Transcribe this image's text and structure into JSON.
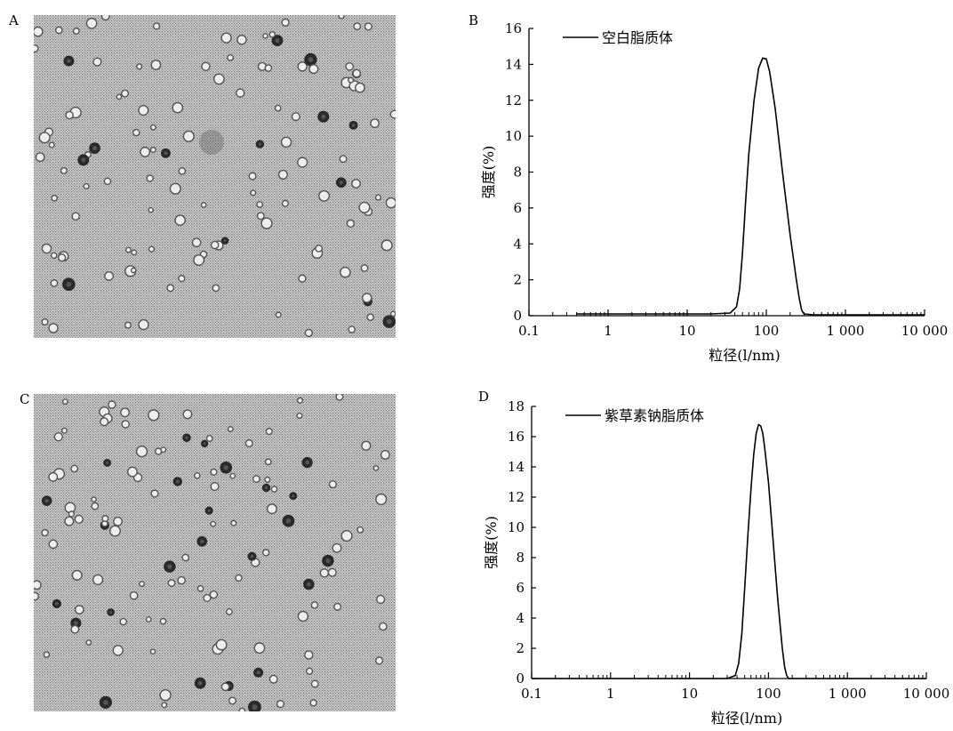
{
  "panels": {
    "A": {
      "label": "A",
      "image_kind": "TEM micrograph"
    },
    "B": {
      "label": "B"
    },
    "C": {
      "label": "C",
      "image_kind": "TEM micrograph"
    },
    "D": {
      "label": "D"
    }
  },
  "chart_data": [
    {
      "id": "B",
      "type": "line",
      "xscale": "log",
      "xlabel": "粒径(l/nm)",
      "ylabel": "强度(%)",
      "xlim": [
        0.1,
        10000
      ],
      "ylim": [
        0,
        16
      ],
      "xticks": [
        0.1,
        1,
        10,
        100,
        1000,
        10000
      ],
      "xtick_labels": [
        "0.1",
        "1",
        "10",
        "100",
        "1 000",
        "10 000"
      ],
      "yticks": [
        0,
        2,
        4,
        6,
        8,
        10,
        12,
        14,
        16
      ],
      "ytick_labels": [
        "0",
        "2",
        "4",
        "6",
        "8",
        "10",
        "12",
        "14",
        "16"
      ],
      "legend_position": "top-left",
      "series": [
        {
          "name": "空白脂质体",
          "x": [
            0.4,
            1,
            5,
            20,
            35,
            42,
            46,
            50,
            55,
            60,
            70,
            80,
            90,
            100,
            110,
            130,
            160,
            200,
            240,
            260,
            280,
            300,
            400,
            1000,
            10000
          ],
          "y": [
            0.1,
            0.1,
            0.1,
            0.1,
            0.15,
            0.5,
            1.5,
            3.5,
            6.5,
            9.0,
            12.0,
            13.8,
            14.35,
            14.3,
            13.6,
            11.5,
            8.0,
            4.5,
            2.0,
            1.0,
            0.3,
            0.1,
            0.05,
            0.05,
            0.05
          ]
        }
      ]
    },
    {
      "id": "D",
      "type": "line",
      "xscale": "log",
      "xlabel": "粒径(l/nm)",
      "ylabel": "强度(%)",
      "xlim": [
        0.1,
        10000
      ],
      "ylim": [
        0,
        18
      ],
      "xticks": [
        0.1,
        1,
        10,
        100,
        1000,
        10000
      ],
      "xtick_labels": [
        "0.1",
        "1",
        "10",
        "100",
        "1 000",
        "10 000"
      ],
      "yticks": [
        0,
        2,
        4,
        6,
        8,
        10,
        12,
        14,
        16,
        18
      ],
      "ytick_labels": [
        "0",
        "2",
        "4",
        "6",
        "8",
        "10",
        "12",
        "14",
        "16",
        "18"
      ],
      "legend_position": "top-left",
      "series": [
        {
          "name": "紫草素钠脂质体",
          "x": [
            0.1,
            10,
            30,
            38,
            42,
            46,
            50,
            55,
            60,
            65,
            70,
            75,
            80,
            85,
            90,
            100,
            110,
            120,
            130,
            140,
            150,
            160,
            170,
            180,
            1000,
            10000
          ],
          "y": [
            0,
            0,
            0,
            0.2,
            1.0,
            3.0,
            6.0,
            9.5,
            12.5,
            14.8,
            16.2,
            16.8,
            16.7,
            16.2,
            15.2,
            13.0,
            10.3,
            7.8,
            5.5,
            3.6,
            2.0,
            0.8,
            0.2,
            0,
            0,
            0
          ]
        }
      ]
    }
  ]
}
